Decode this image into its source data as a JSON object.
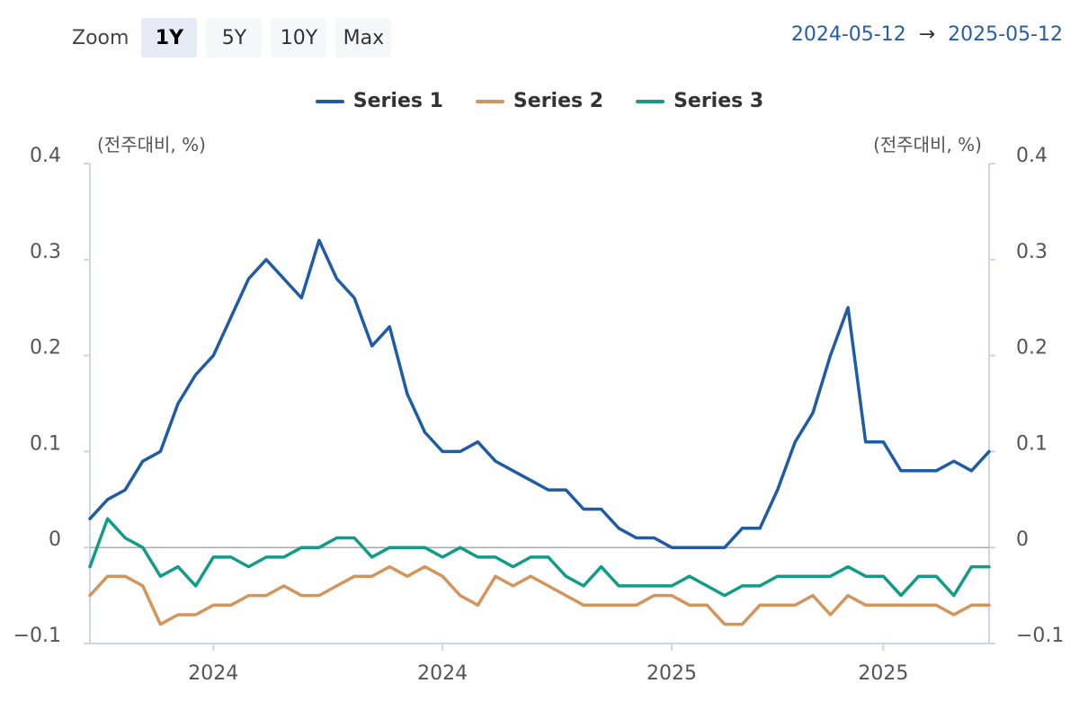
{
  "zoom": {
    "label": "Zoom",
    "buttons": [
      {
        "label": "1Y",
        "active": true
      },
      {
        "label": "5Y",
        "active": false
      },
      {
        "label": "10Y",
        "active": false
      },
      {
        "label": "Max",
        "active": false
      }
    ]
  },
  "date_range": {
    "start": "2024-05-12",
    "arrow": "→",
    "end": "2025-05-12"
  },
  "colors": {
    "series1": "#1f5ba6",
    "series2": "#d4955c",
    "series3": "#109c86",
    "axis": "#ccd6eb",
    "zero": "#aaaaaa"
  },
  "chart_data": {
    "type": "line",
    "ylim": [
      -0.1,
      0.4
    ],
    "yticks": [
      "0.4",
      "0.3",
      "0.2",
      "0.1",
      "0",
      "−0.1"
    ],
    "y_unit_left": "(전주대비, %)",
    "y_unit_right": "(전주대비, %)",
    "xtick_labels": [
      "2024",
      "2024",
      "2025",
      "2025"
    ],
    "xtick_index": [
      7,
      20,
      33,
      45
    ],
    "legend_position": "top-center",
    "grid": false,
    "series": [
      {
        "name": "Series 1",
        "color": "#1f5ba6",
        "values": [
          0.03,
          0.05,
          0.06,
          0.09,
          0.1,
          0.15,
          0.18,
          0.2,
          0.24,
          0.28,
          0.3,
          0.28,
          0.26,
          0.32,
          0.28,
          0.26,
          0.21,
          0.23,
          0.16,
          0.12,
          0.1,
          0.1,
          0.11,
          0.09,
          0.08,
          0.07,
          0.06,
          0.06,
          0.04,
          0.04,
          0.02,
          0.01,
          0.01,
          0.0,
          0.0,
          0.0,
          0.0,
          0.02,
          0.02,
          0.06,
          0.11,
          0.14,
          0.2,
          0.25,
          0.11,
          0.11,
          0.08,
          0.08,
          0.08,
          0.09,
          0.08,
          0.1
        ]
      },
      {
        "name": "Series 2",
        "color": "#d4955c",
        "values": [
          -0.05,
          -0.03,
          -0.03,
          -0.04,
          -0.08,
          -0.07,
          -0.07,
          -0.06,
          -0.06,
          -0.05,
          -0.05,
          -0.04,
          -0.05,
          -0.05,
          -0.04,
          -0.03,
          -0.03,
          -0.02,
          -0.03,
          -0.02,
          -0.03,
          -0.05,
          -0.06,
          -0.03,
          -0.04,
          -0.03,
          -0.04,
          -0.05,
          -0.06,
          -0.06,
          -0.06,
          -0.06,
          -0.05,
          -0.05,
          -0.06,
          -0.06,
          -0.08,
          -0.08,
          -0.06,
          -0.06,
          -0.06,
          -0.05,
          -0.07,
          -0.05,
          -0.06,
          -0.06,
          -0.06,
          -0.06,
          -0.06,
          -0.07,
          -0.06,
          -0.06
        ]
      },
      {
        "name": "Series 3",
        "color": "#109c86",
        "values": [
          -0.02,
          0.03,
          0.01,
          0.0,
          -0.03,
          -0.02,
          -0.04,
          -0.01,
          -0.01,
          -0.02,
          -0.01,
          -0.01,
          0.0,
          0.0,
          0.01,
          0.01,
          -0.01,
          0.0,
          0.0,
          0.0,
          -0.01,
          0.0,
          -0.01,
          -0.01,
          -0.02,
          -0.01,
          -0.01,
          -0.03,
          -0.04,
          -0.02,
          -0.04,
          -0.04,
          -0.04,
          -0.04,
          -0.03,
          -0.04,
          -0.05,
          -0.04,
          -0.04,
          -0.03,
          -0.03,
          -0.03,
          -0.03,
          -0.02,
          -0.03,
          -0.03,
          -0.05,
          -0.03,
          -0.03,
          -0.05,
          -0.02,
          -0.02
        ]
      }
    ]
  }
}
